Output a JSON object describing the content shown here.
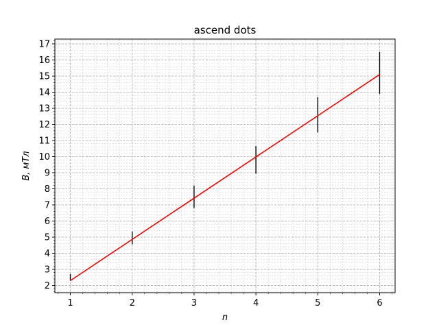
{
  "chart_data": {
    "type": "line",
    "title": "ascend dots",
    "xlabel": "n",
    "ylabel": "B, мТл",
    "xlim": [
      0.75,
      6.25
    ],
    "ylim": [
      1.55,
      17.3
    ],
    "x_ticks": [
      1,
      2,
      3,
      4,
      5,
      6
    ],
    "y_ticks": [
      2,
      3,
      4,
      5,
      6,
      7,
      8,
      9,
      10,
      11,
      12,
      13,
      14,
      15,
      16,
      17
    ],
    "x_minor_step": 0.2,
    "y_minor_step": 0.2,
    "grid": true,
    "series": [
      {
        "style": "errorbar",
        "color": "#000000",
        "x": [
          1,
          2,
          3,
          4,
          5,
          6
        ],
        "y": [
          2.5,
          4.95,
          7.5,
          9.8,
          12.6,
          15.2
        ],
        "yerr": [
          0.2,
          0.4,
          0.7,
          0.85,
          1.1,
          1.3
        ]
      },
      {
        "style": "line",
        "color": "#ff0000",
        "x": [
          1,
          6
        ],
        "y": [
          2.3,
          15.1
        ]
      }
    ]
  }
}
